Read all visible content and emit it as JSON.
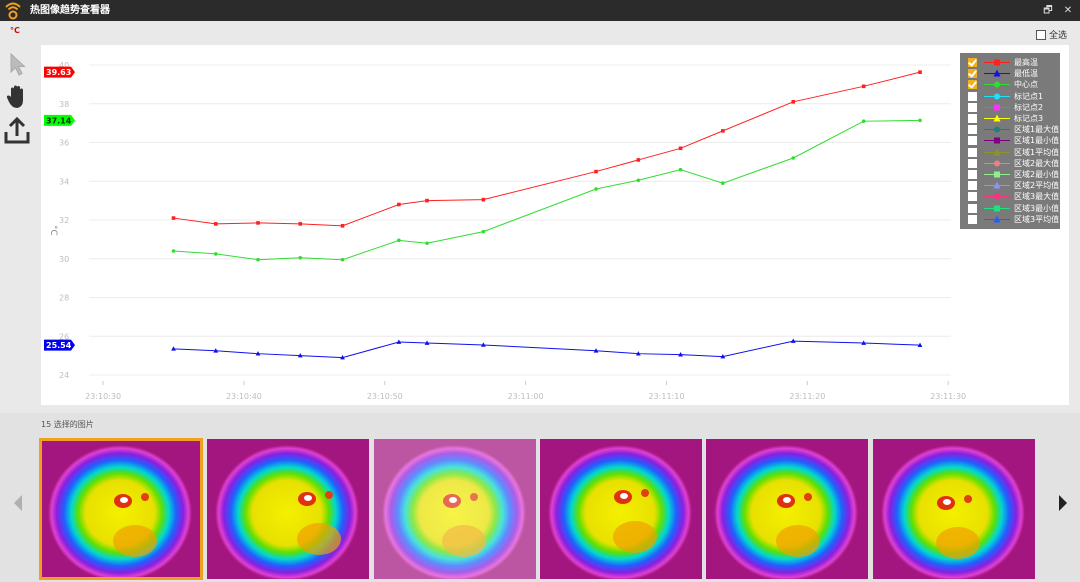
{
  "window": {
    "title": "热图像趋势查看器",
    "controls": {
      "restore": "🗗",
      "close": "✕"
    }
  },
  "unit_label": "°C",
  "select_all": {
    "label": "全选",
    "checked": false
  },
  "toolbar": {
    "tools": [
      "pointer-icon",
      "hand-icon",
      "export-icon"
    ]
  },
  "chart_data": {
    "type": "line",
    "x": [
      "23:10:35",
      "23:10:38",
      "23:10:41",
      "23:10:44",
      "23:10:47",
      "23:10:51",
      "23:10:53",
      "23:10:57",
      "23:11:05",
      "23:11:08",
      "23:11:11",
      "23:11:14",
      "23:11:19",
      "23:11:24",
      "23:11:28"
    ],
    "x_ticks": [
      "23:10:30",
      "23:10:40",
      "23:10:50",
      "23:11:00",
      "23:11:10",
      "23:11:20",
      "23:11:30"
    ],
    "y_ticks": [
      "24",
      "26",
      "28",
      "30",
      "32",
      "34",
      "36",
      "38",
      "40"
    ],
    "ylim": [
      24,
      40
    ],
    "ylabel": "°C",
    "series": [
      {
        "name": "最高温",
        "color": "#ff2020",
        "values": [
          32.1,
          31.8,
          31.85,
          31.8,
          31.7,
          32.8,
          33.0,
          33.05,
          34.5,
          35.1,
          35.7,
          36.6,
          38.1,
          38.9,
          39.63
        ]
      },
      {
        "name": "最低温",
        "color": "#1010ee",
        "values": [
          25.35,
          25.25,
          25.1,
          25.0,
          24.9,
          25.7,
          25.65,
          25.55,
          25.25,
          25.1,
          25.05,
          24.95,
          25.75,
          25.65,
          25.54
        ]
      },
      {
        "name": "中心点",
        "color": "#30dd30",
        "values": [
          30.4,
          30.25,
          29.95,
          30.05,
          29.95,
          30.95,
          30.8,
          31.4,
          33.6,
          34.05,
          34.6,
          33.9,
          35.2,
          37.1,
          37.14
        ]
      }
    ],
    "badges": [
      {
        "text": "39.63",
        "value": 39.63,
        "color": "#ff0000",
        "textColor": "#ffffff"
      },
      {
        "text": "37.14",
        "value": 37.14,
        "color": "#00ff00",
        "textColor": "#003300"
      },
      {
        "text": "25.54",
        "value": 25.54,
        "color": "#0000ee",
        "textColor": "#ffffff"
      }
    ]
  },
  "legend": {
    "items": [
      {
        "label": "最高温",
        "color": "#ff2020",
        "marker": "square",
        "checked": true
      },
      {
        "label": "最低温",
        "color": "#1010ee",
        "marker": "triangle",
        "checked": true
      },
      {
        "label": "中心点",
        "color": "#30dd30",
        "marker": "circle",
        "checked": true
      },
      {
        "label": "标记点1",
        "color": "#20e0ff",
        "marker": "circle",
        "checked": false
      },
      {
        "label": "标记点2",
        "color": "#ff30ff",
        "marker": "square",
        "checked": false
      },
      {
        "label": "标记点3",
        "color": "#ffff00",
        "marker": "triangle",
        "checked": false
      },
      {
        "label": "区域1最大值",
        "color": "#208080",
        "marker": "circle",
        "checked": false
      },
      {
        "label": "区域1最小值",
        "color": "#800080",
        "marker": "square",
        "checked": false
      },
      {
        "label": "区域1平均值",
        "color": "#909030",
        "marker": "triangle",
        "checked": false
      },
      {
        "label": "区域2最大值",
        "color": "#f08080",
        "marker": "circle",
        "checked": false
      },
      {
        "label": "区域2最小值",
        "color": "#90ee90",
        "marker": "square",
        "checked": false
      },
      {
        "label": "区域2平均值",
        "color": "#9090ff",
        "marker": "triangle",
        "checked": false
      },
      {
        "label": "区域3最大值",
        "color": "#ff3080",
        "marker": "circle",
        "checked": false
      },
      {
        "label": "区域3最小值",
        "color": "#20e080",
        "marker": "square",
        "checked": false
      },
      {
        "label": "区域3平均值",
        "color": "#2060ff",
        "marker": "triangle",
        "checked": false
      }
    ]
  },
  "frames": {
    "label": "15 选择的图片",
    "thumbnails": [
      {
        "name": "thermal-frame-1",
        "selected": true
      },
      {
        "name": "thermal-frame-2",
        "selected": false
      },
      {
        "name": "thermal-frame-3",
        "selected": false
      },
      {
        "name": "thermal-frame-4",
        "selected": false
      },
      {
        "name": "thermal-frame-5",
        "selected": false
      },
      {
        "name": "thermal-frame-6",
        "selected": false
      }
    ]
  }
}
